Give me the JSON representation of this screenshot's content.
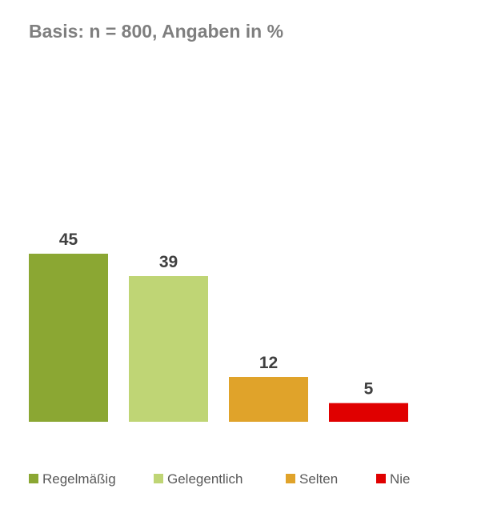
{
  "chart_data": {
    "type": "bar",
    "subtitle": "Basis: n = 800, Angaben in %",
    "categories": [
      "Regelmäßig",
      "Gelegentlich",
      "Selten",
      "Nie"
    ],
    "values": [
      45,
      39,
      12,
      5
    ],
    "colors": [
      "#8ba733",
      "#bfd575",
      "#e0a32a",
      "#e00000"
    ],
    "ylim": [
      0,
      100
    ],
    "grid": false,
    "legend": "bottom"
  }
}
